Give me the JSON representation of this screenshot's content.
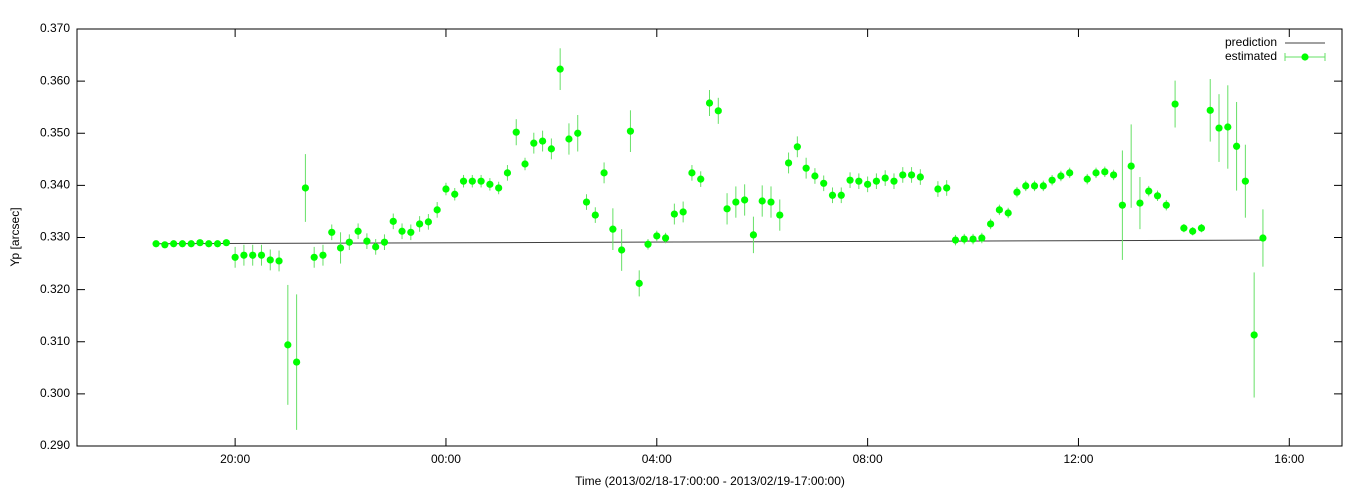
{
  "chart_data": {
    "type": "scatter",
    "xlabel": "Time (2013/02/18-17:00:00 - 2013/02/19-17:00:00)",
    "ylabel": "Yp [arcsec]",
    "xlim": [
      0,
      1440
    ],
    "xticks": [
      {
        "value": 180,
        "label": "20:00"
      },
      {
        "value": 420,
        "label": "00:00"
      },
      {
        "value": 660,
        "label": "04:00"
      },
      {
        "value": 900,
        "label": "08:00"
      },
      {
        "value": 1140,
        "label": "12:00"
      },
      {
        "value": 1380,
        "label": "16:00"
      }
    ],
    "ylim": [
      0.29,
      0.37
    ],
    "yticks": [
      {
        "value": 0.29,
        "label": "0.290"
      },
      {
        "value": 0.3,
        "label": "0.300"
      },
      {
        "value": 0.31,
        "label": "0.310"
      },
      {
        "value": 0.32,
        "label": "0.320"
      },
      {
        "value": 0.33,
        "label": "0.330"
      },
      {
        "value": 0.34,
        "label": "0.340"
      },
      {
        "value": 0.35,
        "label": "0.350"
      },
      {
        "value": 0.36,
        "label": "0.360"
      },
      {
        "value": 0.37,
        "label": "0.370"
      }
    ],
    "legend": "top-right",
    "series": [
      {
        "name": "prediction",
        "type": "line",
        "color": "#404040",
        "x": [
          90,
          1350
        ],
        "values": [
          0.3288,
          0.3295
        ]
      },
      {
        "name": "estimated",
        "type": "errorbar",
        "color": "#00ff00",
        "error_color": "#66e066",
        "x": [
          90,
          100,
          110,
          120,
          130,
          140,
          150,
          160,
          170,
          180,
          190,
          200,
          210,
          220,
          230,
          240,
          250,
          260,
          270,
          280,
          290,
          300,
          310,
          320,
          330,
          340,
          350,
          360,
          370,
          380,
          390,
          400,
          410,
          420,
          430,
          440,
          450,
          460,
          470,
          480,
          490,
          500,
          510,
          520,
          530,
          540,
          550,
          560,
          570,
          580,
          590,
          600,
          610,
          620,
          630,
          640,
          650,
          660,
          670,
          680,
          690,
          700,
          710,
          720,
          730,
          740,
          750,
          760,
          770,
          780,
          790,
          800,
          810,
          820,
          830,
          840,
          850,
          860,
          870,
          880,
          890,
          900,
          910,
          920,
          930,
          940,
          950,
          960,
          980,
          990,
          1000,
          1010,
          1020,
          1030,
          1040,
          1050,
          1060,
          1070,
          1080,
          1090,
          1100,
          1110,
          1120,
          1130,
          1150,
          1160,
          1170,
          1180,
          1190,
          1200,
          1210,
          1220,
          1230,
          1240,
          1250,
          1260,
          1270,
          1280,
          1290,
          1300,
          1310,
          1320,
          1330,
          1340,
          1350
        ],
        "values": [
          0.3288,
          0.3286,
          0.3288,
          0.3288,
          0.3288,
          0.329,
          0.3288,
          0.3288,
          0.329,
          0.3262,
          0.3266,
          0.3266,
          0.3266,
          0.3257,
          0.3255,
          0.3094,
          0.3061,
          0.3395,
          0.3262,
          0.3266,
          0.331,
          0.328,
          0.3291,
          0.3312,
          0.3293,
          0.3282,
          0.3291,
          0.3331,
          0.3312,
          0.331,
          0.3326,
          0.333,
          0.3353,
          0.3393,
          0.3383,
          0.3408,
          0.3408,
          0.3408,
          0.3402,
          0.3395,
          0.3424,
          0.3502,
          0.3441,
          0.3481,
          0.3485,
          0.347,
          0.3623,
          0.3489,
          0.35,
          0.3368,
          0.3343,
          0.3424,
          0.3316,
          0.3276,
          0.3504,
          0.3212,
          0.3287,
          0.3303,
          0.3299,
          0.3345,
          0.3349,
          0.3424,
          0.3412,
          0.3558,
          0.3543,
          0.3355,
          0.3368,
          0.3372,
          0.3305,
          0.337,
          0.3368,
          0.3343,
          0.3443,
          0.3474,
          0.3433,
          0.3418,
          0.3404,
          0.3381,
          0.3381,
          0.341,
          0.3408,
          0.3402,
          0.3408,
          0.3414,
          0.3408,
          0.342,
          0.342,
          0.3416,
          0.3393,
          0.3395,
          0.3295,
          0.3297,
          0.3297,
          0.3299,
          0.3326,
          0.3353,
          0.3347,
          0.3387,
          0.3399,
          0.3399,
          0.3399,
          0.341,
          0.3418,
          0.3424,
          0.3412,
          0.3424,
          0.3426,
          0.342,
          0.3362,
          0.3437,
          0.3366,
          0.3389,
          0.338,
          0.3362,
          0.3556,
          0.3318,
          0.3312,
          0.3318,
          0.3544,
          0.351,
          0.3512,
          0.3475,
          0.3408,
          0.3113,
          0.3299
        ],
        "errors": [
          0.0005,
          0.0005,
          0.0005,
          0.0005,
          0.0005,
          0.0005,
          0.0005,
          0.0005,
          0.0005,
          0.002,
          0.002,
          0.002,
          0.002,
          0.002,
          0.002,
          0.0115,
          0.013,
          0.0065,
          0.002,
          0.002,
          0.0015,
          0.003,
          0.0015,
          0.0015,
          0.0015,
          0.0015,
          0.0015,
          0.0015,
          0.0015,
          0.0015,
          0.0015,
          0.0015,
          0.0015,
          0.0012,
          0.0012,
          0.0012,
          0.0012,
          0.0012,
          0.0012,
          0.0012,
          0.0015,
          0.0025,
          0.0012,
          0.002,
          0.002,
          0.002,
          0.004,
          0.003,
          0.0035,
          0.0015,
          0.0015,
          0.002,
          0.004,
          0.004,
          0.004,
          0.0025,
          0.001,
          0.001,
          0.001,
          0.002,
          0.002,
          0.0015,
          0.0015,
          0.0025,
          0.0025,
          0.003,
          0.003,
          0.003,
          0.0035,
          0.003,
          0.003,
          0.003,
          0.002,
          0.002,
          0.002,
          0.0015,
          0.0015,
          0.0015,
          0.0015,
          0.0015,
          0.0015,
          0.0015,
          0.0015,
          0.0015,
          0.0015,
          0.0015,
          0.0015,
          0.0015,
          0.0015,
          0.0015,
          0.001,
          0.001,
          0.001,
          0.001,
          0.001,
          0.001,
          0.001,
          0.001,
          0.001,
          0.001,
          0.001,
          0.001,
          0.001,
          0.001,
          0.001,
          0.001,
          0.001,
          0.001,
          0.0105,
          0.008,
          0.005,
          0.001,
          0.001,
          0.001,
          0.0045,
          0.0008,
          0.0008,
          0.0008,
          0.006,
          0.0065,
          0.008,
          0.0085,
          0.007,
          0.012,
          0.0055
        ]
      }
    ]
  }
}
